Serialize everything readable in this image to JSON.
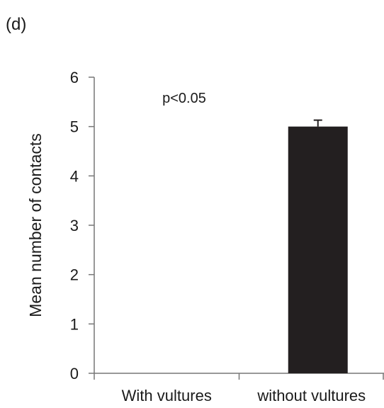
{
  "panel_label": "(d)",
  "chart_data": {
    "type": "bar",
    "categories": [
      "With vultures",
      "without vultures"
    ],
    "values": [
      0,
      5.0
    ],
    "error": [
      0,
      0.13
    ],
    "ylabel": "Mean number of contacts",
    "xlabel": "",
    "ylim": [
      0,
      6
    ],
    "yticks": [
      0,
      1,
      2,
      3,
      4,
      5,
      6
    ],
    "annotation": "p<0.05",
    "bar_color": "#231f20",
    "grid": false,
    "legend": "none"
  }
}
